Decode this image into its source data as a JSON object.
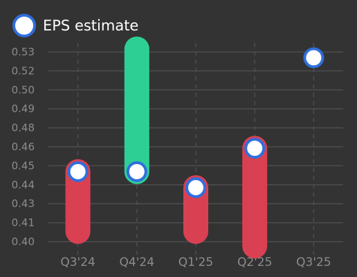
{
  "chart_data": {
    "type": "bar",
    "subtype": "eps-actual-vs-estimate",
    "categories": [
      "Q3'24",
      "Q4'24",
      "Q1'25",
      "Q2'25",
      "Q3'25"
    ],
    "y_ticks": [
      "0.40",
      "0.41",
      "0.43",
      "0.44",
      "0.45",
      "0.46",
      "0.48",
      "0.49",
      "0.50",
      "0.52",
      "0.53"
    ],
    "ylim": [
      0.4,
      0.53
    ],
    "series": [
      {
        "name": "",
        "values": [
          0.407,
          0.532,
          0.407,
          0.397,
          null
        ]
      },
      {
        "name": "EPS estimate",
        "values": [
          0.448,
          0.448,
          0.437,
          0.464,
          0.526
        ]
      }
    ],
    "grid": {
      "horizontal": true,
      "vertical_dashed": true
    },
    "legend_position": "top-left",
    "colors": {
      "background": "#333333",
      "beat": "#2ecf95",
      "miss": "#d94052",
      "marker_fill": "#ffffff",
      "marker_border": "#2f6fdc",
      "grid": "#4d4d4d",
      "tick_text": "#8c8c8c"
    }
  },
  "legend": {
    "label": "EPS estimate",
    "marker_icon": "circle-marker-icon"
  }
}
